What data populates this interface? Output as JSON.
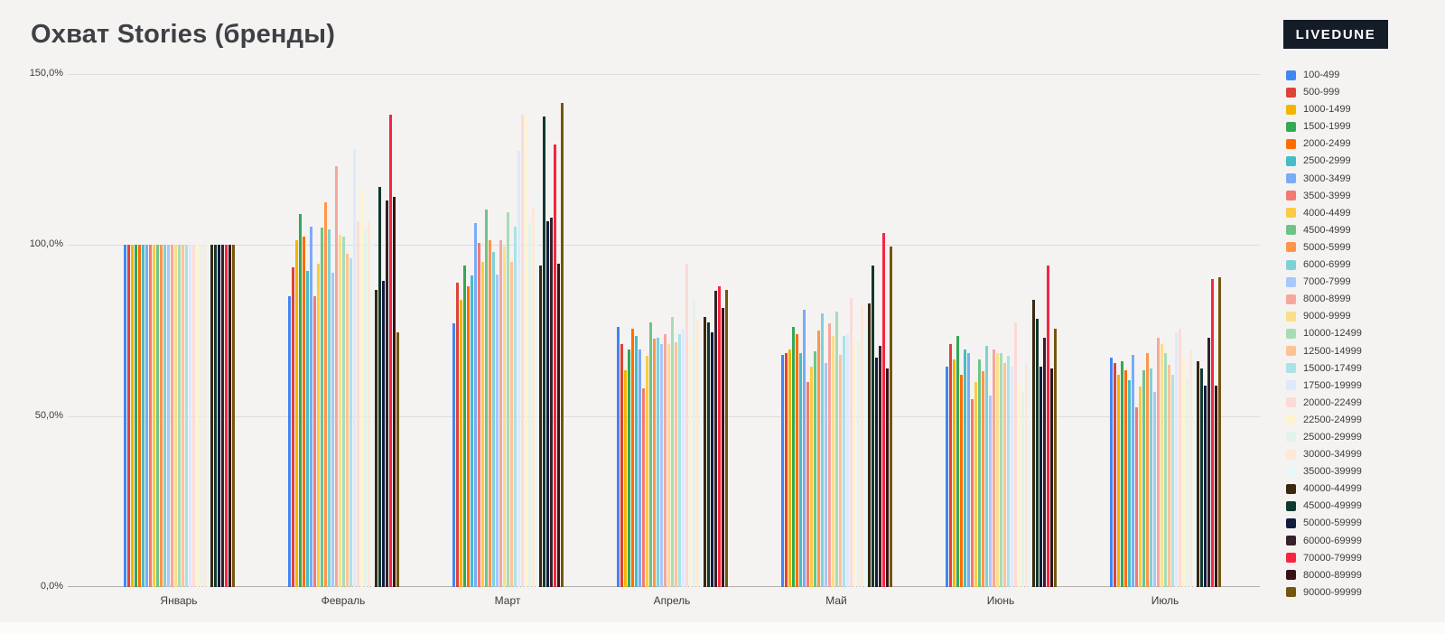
{
  "page": {
    "background": "#f4f3f1"
  },
  "header": {
    "title": "Охват Stories (бренды)"
  },
  "brand": {
    "label": "LIVEDUNE",
    "bg": "#141c28",
    "text_color": "#ffffff"
  },
  "chart_data": {
    "type": "bar",
    "title": "Охват Stories (бренды)",
    "xlabel": "",
    "ylabel": "",
    "ylim": [
      0,
      150
    ],
    "y_ticks": [
      "150,0%",
      "100,0%",
      "50,0%",
      "0,0%"
    ],
    "grid": true,
    "legend_position": "right",
    "categories": [
      "Январь",
      "Февраль",
      "Март",
      "Апрель",
      "Май",
      "Июнь",
      "Июль"
    ],
    "series": [
      {
        "name": "100-499",
        "color": "#4285F4",
        "values": [
          100,
          85,
          77,
          76,
          68,
          64.5,
          67
        ]
      },
      {
        "name": "500-999",
        "color": "#DB4437",
        "values": [
          100,
          93.5,
          89,
          71,
          68.5,
          71,
          65.5
        ]
      },
      {
        "name": "1000-1499",
        "color": "#F4B400",
        "values": [
          100,
          101.5,
          84,
          63.5,
          69.5,
          66.5,
          62
        ]
      },
      {
        "name": "1500-1999",
        "color": "#34A853",
        "values": [
          100,
          109,
          94,
          69.5,
          76,
          73.5,
          66
        ]
      },
      {
        "name": "2000-2499",
        "color": "#FF6D01",
        "values": [
          100,
          102.5,
          88,
          75.5,
          74,
          62,
          63.5
        ]
      },
      {
        "name": "2500-2999",
        "color": "#46BDC6",
        "values": [
          100,
          92.5,
          91,
          73.5,
          68.5,
          69.5,
          60.5
        ]
      },
      {
        "name": "3000-3499",
        "color": "#7BAAF7",
        "values": [
          100,
          105.5,
          106.5,
          69.5,
          81,
          68.5,
          68
        ]
      },
      {
        "name": "3500-3999",
        "color": "#F07B72",
        "values": [
          100,
          85,
          100.5,
          58,
          60,
          55,
          52.5
        ]
      },
      {
        "name": "4000-4499",
        "color": "#FBCB43",
        "values": [
          100,
          94.5,
          95,
          67.5,
          64.5,
          60,
          58.5
        ]
      },
      {
        "name": "4500-4999",
        "color": "#6EC487",
        "values": [
          100,
          105,
          110.5,
          77.5,
          69,
          66.5,
          63.5
        ]
      },
      {
        "name": "5000-5999",
        "color": "#FF954A",
        "values": [
          100,
          112.5,
          101.5,
          72.5,
          75,
          63,
          68.5
        ]
      },
      {
        "name": "6000-6999",
        "color": "#7ED1D7",
        "values": [
          100,
          104.5,
          98,
          73,
          80,
          70.5,
          64
        ]
      },
      {
        "name": "7000-7999",
        "color": "#A8C7FA",
        "values": [
          100,
          92,
          91.5,
          71,
          65.5,
          56,
          57
        ]
      },
      {
        "name": "8000-8999",
        "color": "#F5A79E",
        "values": [
          100,
          123,
          101.5,
          74,
          77,
          69.5,
          73
        ]
      },
      {
        "name": "9000-9999",
        "color": "#FBDE89",
        "values": [
          100,
          103,
          99.5,
          71,
          73.5,
          68.5,
          71
        ]
      },
      {
        "name": "10000-12499",
        "color": "#A8DCB5",
        "values": [
          100,
          102.5,
          109.5,
          79,
          80.5,
          68.5,
          68.5
        ]
      },
      {
        "name": "12500-14999",
        "color": "#FFC296",
        "values": [
          100,
          97.5,
          95,
          71.5,
          68,
          65.5,
          65
        ]
      },
      {
        "name": "15000-17499",
        "color": "#ABE2E7",
        "values": [
          100,
          96,
          105.5,
          74,
          73.5,
          67.5,
          62
        ]
      },
      {
        "name": "17500-19999",
        "color": "#DFE9FC",
        "values": [
          100,
          128,
          127.5,
          75.5,
          74,
          64.5,
          74.5
        ]
      },
      {
        "name": "20000-22499",
        "color": "#FBDBD8",
        "values": [
          100,
          107,
          138,
          94.5,
          84.5,
          77.5,
          75.5
        ]
      },
      {
        "name": "22500-24999",
        "color": "#FDF3CF",
        "values": [
          100,
          116.5,
          138,
          72,
          72.5,
          59,
          66.5
        ]
      },
      {
        "name": "25000-29999",
        "color": "#E3F3EA",
        "values": [
          100,
          104.5,
          106.5,
          84.5,
          71.5,
          57,
          61
        ]
      },
      {
        "name": "30000-34999",
        "color": "#FFE8D7",
        "values": [
          100,
          107,
          111,
          78,
          82.5,
          65.5,
          69.5
        ]
      },
      {
        "name": "35000-39999",
        "color": "#E8F7F8",
        "values": [
          100,
          103,
          115,
          70.5,
          75.5,
          64,
          68.5
        ]
      },
      {
        "name": "40000-44999",
        "color": "#39290E",
        "values": [
          100,
          87,
          94,
          79,
          83,
          84,
          66
        ]
      },
      {
        "name": "45000-49999",
        "color": "#0F382E",
        "values": [
          100,
          117,
          137.5,
          77.5,
          94,
          78.5,
          64
        ]
      },
      {
        "name": "50000-59999",
        "color": "#121C3D",
        "values": [
          100,
          89.5,
          107,
          74.5,
          67,
          64.5,
          59
        ]
      },
      {
        "name": "60000-69999",
        "color": "#35202B",
        "values": [
          100,
          113,
          108,
          86.5,
          70.5,
          73,
          73
        ]
      },
      {
        "name": "70000-79999",
        "color": "#F72540",
        "values": [
          100,
          138,
          129.5,
          88,
          103.5,
          94,
          90
        ]
      },
      {
        "name": "80000-89999",
        "color": "#371318",
        "values": [
          100,
          114,
          94.5,
          81.5,
          64,
          64,
          59
        ]
      },
      {
        "name": "90000-99999",
        "color": "#75560E",
        "values": [
          100,
          74.5,
          141.5,
          87,
          99.5,
          75.5,
          90.5
        ]
      }
    ]
  }
}
